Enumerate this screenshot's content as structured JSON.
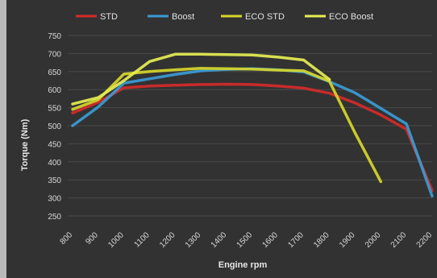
{
  "chart_data": {
    "type": "line",
    "title": "",
    "xlabel": "Engine rpm",
    "ylabel": "Torque (Nm)",
    "categories": [
      "800",
      "900",
      "1000",
      "1100",
      "1200",
      "1300",
      "1400",
      "1500",
      "1600",
      "1700",
      "1800",
      "1900",
      "2000",
      "2100",
      "2200"
    ],
    "ylim": [
      250,
      750
    ],
    "yticks": [
      "750",
      "700",
      "650",
      "600",
      "550",
      "500",
      "450",
      "400",
      "350",
      "300",
      "250"
    ],
    "grid": true,
    "legend_position": "top",
    "series": [
      {
        "name": "STD",
        "color": "#d42a2a",
        "values": [
          535,
          565,
          605,
          610,
          612,
          614,
          615,
          614,
          610,
          604,
          590,
          563,
          530,
          490,
          320
        ]
      },
      {
        "name": "Boost",
        "color": "#3a9bd4",
        "values": [
          500,
          552,
          618,
          630,
          642,
          652,
          656,
          658,
          655,
          649,
          622,
          591,
          548,
          505,
          305
        ]
      },
      {
        "name": "ECO STD",
        "color": "#d6d62a",
        "values": [
          545,
          572,
          643,
          650,
          655,
          659,
          658,
          657,
          654,
          652,
          623,
          480,
          345,
          null,
          null
        ]
      },
      {
        "name": "ECO Boost",
        "color": "#e6ee52",
        "values": [
          560,
          578,
          625,
          678,
          698,
          698,
          697,
          696,
          690,
          682,
          628,
          null,
          null,
          null,
          null
        ]
      }
    ]
  }
}
